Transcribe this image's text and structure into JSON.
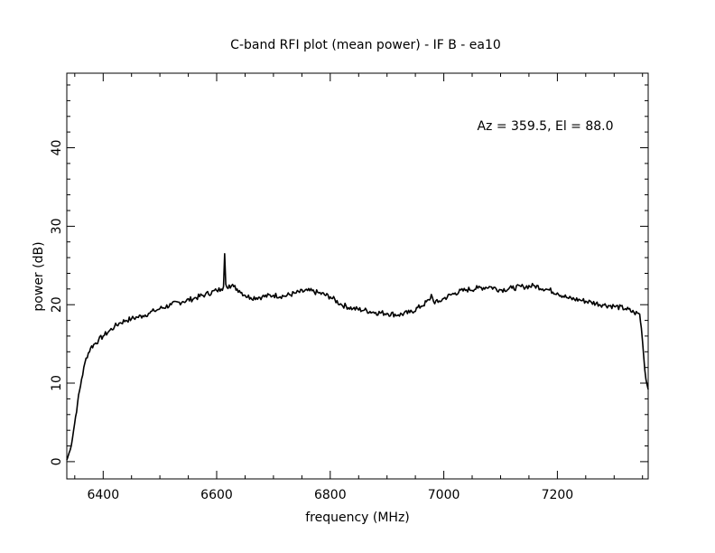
{
  "chart_data": {
    "type": "line",
    "title": "C-band RFI plot (mean power) - IF B - ea10",
    "xlabel": "frequency (MHz)",
    "ylabel": "power (dB)",
    "annotation": "Az = 359.5, El = 88.0",
    "xlim": [
      6336,
      7360
    ],
    "ylim": [
      -2.2,
      49.5
    ],
    "x_major_ticks": [
      6400,
      6600,
      6800,
      7000,
      7200
    ],
    "x_tick_labels": [
      "6400",
      "6600",
      "6800",
      "7000",
      "7200"
    ],
    "y_major_ticks": [
      0,
      10,
      20,
      30,
      40
    ],
    "y_tick_labels": [
      "0",
      "10",
      "20",
      "30",
      "40"
    ],
    "grid": false,
    "line_color": "#000000",
    "series": [
      {
        "x": [
          6336,
          6342,
          6348,
          6355,
          6362,
          6370,
          6378,
          6385,
          6392,
          6400,
          6410,
          6420,
          6430,
          6440,
          6450,
          6460,
          6470,
          6480,
          6490,
          6500,
          6520,
          6540,
          6560,
          6580,
          6600,
          6608,
          6612,
          6614,
          6616,
          6618,
          6622,
          6630,
          6640,
          6650,
          6660,
          6680,
          6700,
          6720,
          6740,
          6760,
          6780,
          6800,
          6820,
          6840,
          6860,
          6880,
          6900,
          6920,
          6940,
          6960,
          6975,
          6978,
          6982,
          6990,
          7000,
          7020,
          7040,
          7060,
          7080,
          7100,
          7120,
          7140,
          7160,
          7180,
          7200,
          7220,
          7240,
          7260,
          7280,
          7300,
          7320,
          7335,
          7345,
          7348,
          7352,
          7356,
          7360
        ],
        "y": [
          0.2,
          1.5,
          4.0,
          7.5,
          10.5,
          13.2,
          14.5,
          15.0,
          15.5,
          16.0,
          16.6,
          17.2,
          17.7,
          18.0,
          18.2,
          18.4,
          18.6,
          18.9,
          19.2,
          19.5,
          20.0,
          20.4,
          20.8,
          21.3,
          21.8,
          22.0,
          22.3,
          26.5,
          22.6,
          22.2,
          22.5,
          22.3,
          21.8,
          21.2,
          20.9,
          21.0,
          21.2,
          21.1,
          21.5,
          21.8,
          21.5,
          21.0,
          20.0,
          19.5,
          19.3,
          19.0,
          18.9,
          18.7,
          19.0,
          19.8,
          20.6,
          21.3,
          20.4,
          20.3,
          20.8,
          21.5,
          21.9,
          22.1,
          22.3,
          21.9,
          22.1,
          22.3,
          22.4,
          22.0,
          21.5,
          20.8,
          20.6,
          20.3,
          20.0,
          19.8,
          19.5,
          19.0,
          18.8,
          17.0,
          13.5,
          10.5,
          9.2
        ]
      }
    ]
  }
}
